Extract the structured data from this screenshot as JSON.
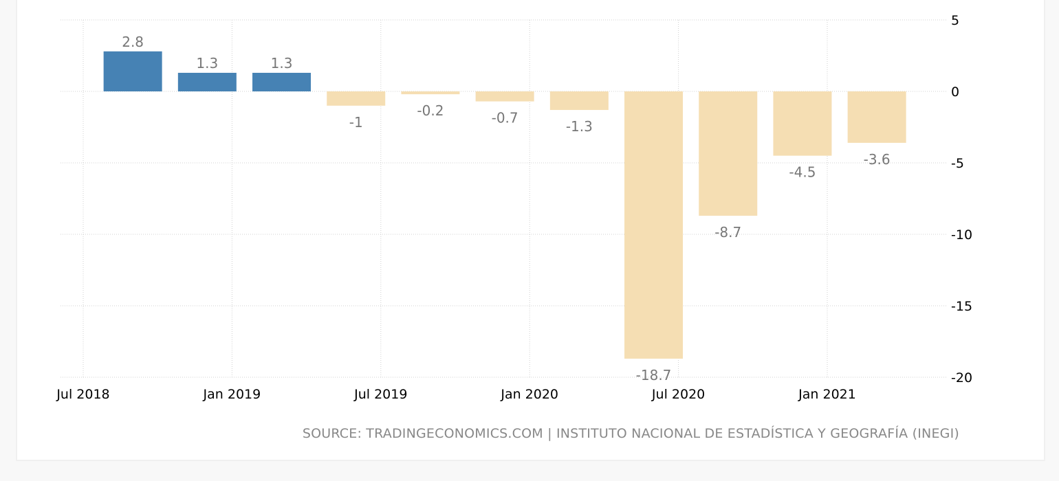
{
  "chart_data": {
    "type": "bar",
    "x": [
      "2018-09",
      "2018-12",
      "2019-03",
      "2019-06",
      "2019-09",
      "2019-12",
      "2020-03",
      "2020-06",
      "2020-09",
      "2020-12",
      "2021-03"
    ],
    "values": [
      2.8,
      1.3,
      1.3,
      -1,
      -0.2,
      -0.7,
      -1.3,
      -18.7,
      -8.7,
      -4.5,
      -3.6
    ],
    "data_labels": [
      "2.8",
      "1.3",
      "1.3",
      "-1",
      "-0.2",
      "-0.7",
      "-1.3",
      "-18.7",
      "-8.7",
      "-4.5",
      "-3.6"
    ],
    "ylim": [
      -20,
      5
    ],
    "y_ticks": [
      "5",
      "0",
      "-5",
      "-10",
      "-15",
      "-20"
    ],
    "y_tick_values": [
      5,
      0,
      -5,
      -10,
      -15,
      -20
    ],
    "x_ticks": [
      "Jul 2018",
      "Jan 2019",
      "Jul 2019",
      "Jan 2020",
      "Jul 2020",
      "Jan 2021"
    ],
    "x_tick_dates": [
      "2018-07",
      "2019-01",
      "2019-07",
      "2020-01",
      "2020-07",
      "2021-01"
    ],
    "y_axis_position": "right",
    "grid": true,
    "colors": {
      "positive": "#4682b4",
      "negative": "#f5deb3"
    }
  },
  "source": "SOURCE: TRADINGECONOMICS.COM | INSTITUTO NACIONAL DE ESTADÍSTICA Y GEOGRAFÍA (INEGI)"
}
